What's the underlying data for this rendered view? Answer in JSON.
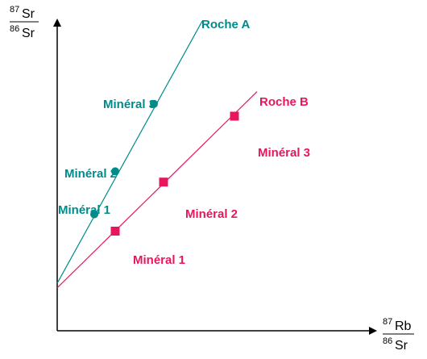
{
  "chart_data": {
    "type": "scatter",
    "ylabel": {
      "num_sup": "87",
      "num": "Sr",
      "den_sup": "86",
      "den": "Sr"
    },
    "xlabel": {
      "num_sup": "87",
      "num": "Rb",
      "den_sup": "86",
      "den": "Sr"
    },
    "xlim": [
      0,
      10
    ],
    "ylim": [
      0,
      10
    ],
    "grid": false,
    "series": [
      {
        "name": "Roche A",
        "color": "#008b8b",
        "marker": "circle",
        "line": {
          "x": [
            0,
            4.5
          ],
          "y": [
            1.55,
            10.1
          ]
        },
        "points": [
          {
            "label": "Minéral 1",
            "x": 1.15,
            "y": 3.8
          },
          {
            "label": "Minéral 2",
            "x": 1.8,
            "y": 5.2
          },
          {
            "label": "Minéral 3",
            "x": 3.0,
            "y": 7.4
          }
        ]
      },
      {
        "name": "Roche B",
        "color": "#e8175d",
        "marker": "square",
        "line": {
          "x": [
            0,
            6.2
          ],
          "y": [
            1.4,
            7.8
          ]
        },
        "points": [
          {
            "label": "Minéral 1",
            "x": 1.8,
            "y": 3.25
          },
          {
            "label": "Minéral 2",
            "x": 3.3,
            "y": 4.85
          },
          {
            "label": "Minéral 3",
            "x": 5.5,
            "y": 7.0
          }
        ]
      }
    ]
  }
}
